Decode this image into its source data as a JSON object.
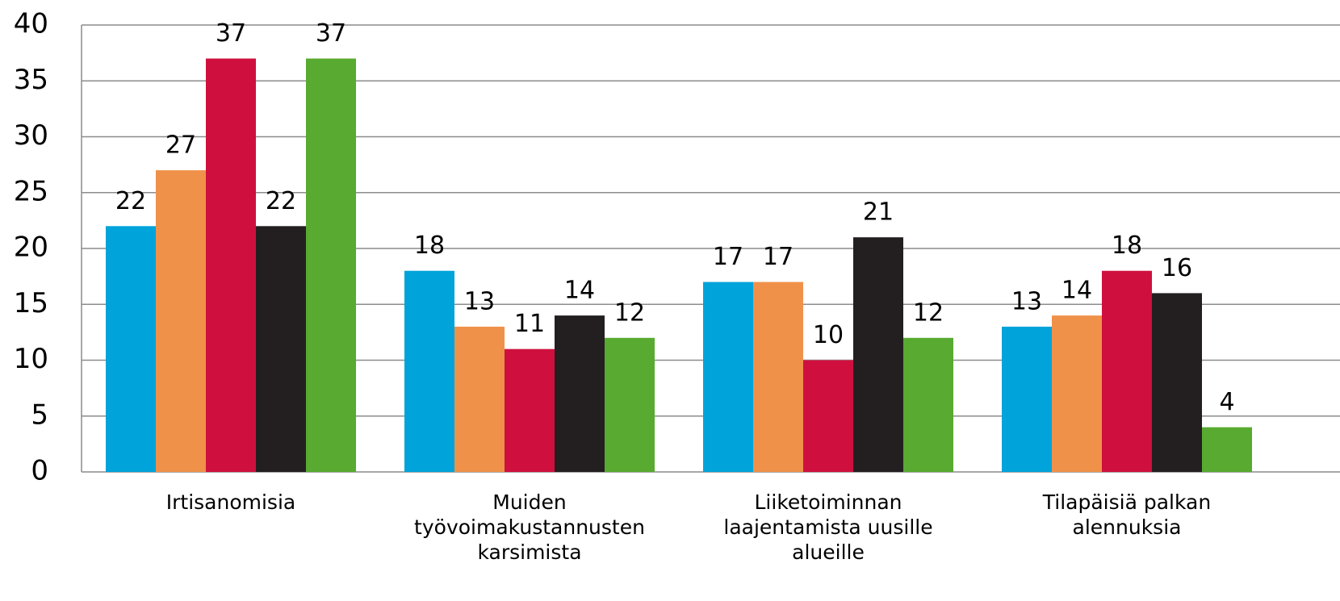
{
  "chart_data": {
    "type": "bar",
    "categories": [
      "Irtisanomisia",
      "Muiden työvoimakustannusten karsimista",
      "Liiketoiminnan laajentamista uusille alueille",
      "Tilapäisiä palkan alennuksia"
    ],
    "series": [
      {
        "color": "#00a3da",
        "values": [
          22,
          18,
          17,
          13
        ]
      },
      {
        "color": "#f0914a",
        "values": [
          27,
          13,
          17,
          14
        ]
      },
      {
        "color": "#cf103e",
        "values": [
          37,
          11,
          10,
          18
        ]
      },
      {
        "color": "#231f20",
        "values": [
          22,
          14,
          21,
          16
        ]
      },
      {
        "color": "#58aa30",
        "values": [
          37,
          12,
          12,
          4
        ]
      }
    ],
    "ylim": [
      0,
      40
    ],
    "yticks": [
      0,
      5,
      10,
      15,
      20,
      25,
      30,
      35,
      40
    ],
    "grid": true
  }
}
